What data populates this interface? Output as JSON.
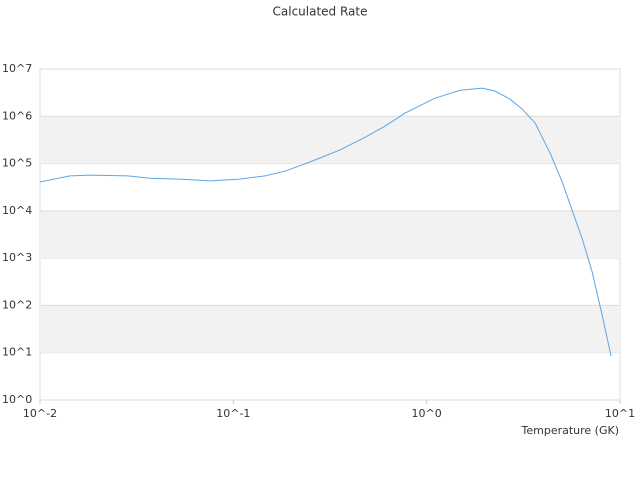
{
  "chart_data": {
    "type": "line",
    "title": "Calculated Rate",
    "x_label": "Temperature (GK)",
    "x": [
      0.01,
      0.0143,
      0.0182,
      0.0285,
      0.037,
      0.053,
      0.076,
      0.108,
      0.146,
      0.185,
      0.249,
      0.356,
      0.48,
      0.61,
      0.773,
      1.1,
      1.49,
      1.94,
      2.26,
      2.7,
      3.12,
      3.64,
      4.35,
      5.0,
      5.65,
      6.37,
      7.18,
      8.08,
      8.99
    ],
    "values": [
      40700,
      55000,
      57000,
      55000,
      49000,
      47000,
      43000,
      47000,
      55000,
      69000,
      108000,
      194000,
      360000,
      620000,
      1170000,
      2400000,
      3550000,
      3950000,
      3400000,
      2300000,
      1420000,
      720000,
      166000,
      43000,
      10400,
      2600,
      510,
      63,
      8.5
    ],
    "color": "#5aa6e8",
    "xscale": "log",
    "yscale": "log",
    "xlim": [
      0.01,
      10
    ],
    "xticks": [
      {
        "value": 0.01,
        "label": "10^-2"
      },
      {
        "value": 0.1,
        "label": "10^-1"
      },
      {
        "value": 1,
        "label": "10^0"
      },
      {
        "value": 10,
        "label": "10^1"
      }
    ],
    "ylim": [
      1,
      10000000
    ],
    "yticks": [
      {
        "value": 1,
        "label": "10^0"
      },
      {
        "value": 10,
        "label": "10^1"
      },
      {
        "value": 100,
        "label": "10^2"
      },
      {
        "value": 1000,
        "label": "10^3"
      },
      {
        "value": 10000,
        "label": "10^4"
      },
      {
        "value": 100000,
        "label": "10^5"
      },
      {
        "value": 1000000,
        "label": "10^6"
      },
      {
        "value": 10000000,
        "label": "10^7"
      }
    ],
    "grid": true,
    "band_color": "#f2f2f2"
  }
}
